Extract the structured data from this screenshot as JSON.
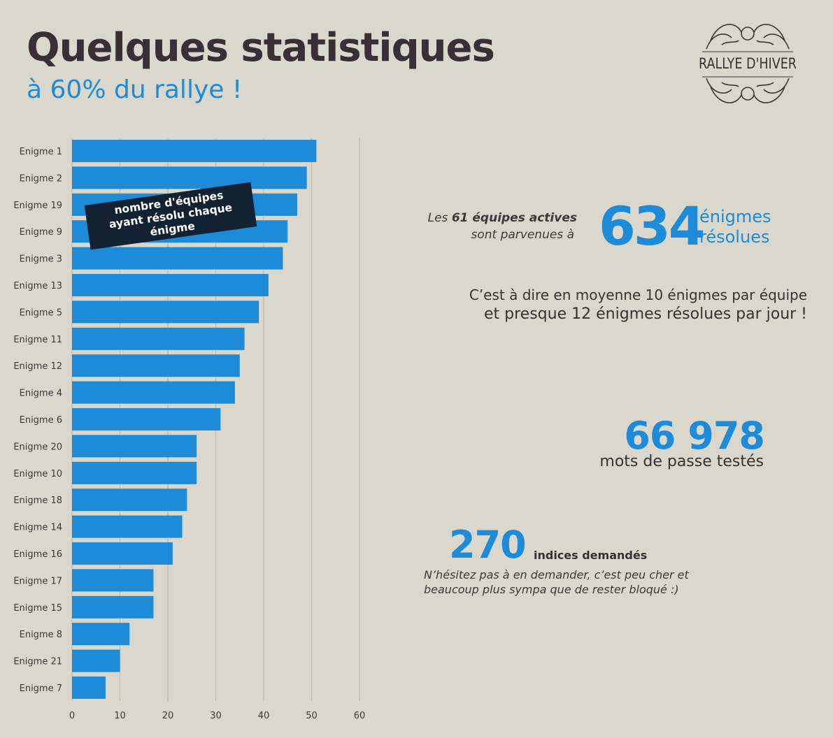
{
  "header": {
    "title": "Quelques statistiques",
    "subtitle": "à 60% du rallye !"
  },
  "logo": {
    "text": "RALLYE D'HIVER"
  },
  "chart_data": {
    "type": "bar",
    "orientation": "horizontal",
    "title": "",
    "xlabel": "",
    "ylabel": "",
    "annotation": "nombre d'équipes ayant résolu chaque énigme",
    "categories": [
      "Enigme 1",
      "Enigme 2",
      "Enigme 19",
      "Enigme 9",
      "Enigme 3",
      "Enigme 13",
      "Enigme 5",
      "Enigme 11",
      "Enigme 12",
      "Enigme 4",
      "Enigme 6",
      "Enigme 20",
      "Enigme 10",
      "Enigme 18",
      "Enigme 14",
      "Enigme 16",
      "Enigme 17",
      "Enigme 15",
      "Enigme 8",
      "Enigme 21",
      "Enigme 7"
    ],
    "values": [
      51,
      49,
      47,
      45,
      44,
      41,
      39,
      36,
      35,
      34,
      31,
      26,
      26,
      24,
      23,
      21,
      17,
      17,
      12,
      10,
      7
    ],
    "xlim": [
      0,
      60
    ],
    "xticks": [
      0,
      10,
      20,
      30,
      40,
      50,
      60
    ],
    "grid": true,
    "bar_color": "#1e8bd8"
  },
  "stats": {
    "teams_prefix": "Les ",
    "teams_bold": "61 équipes actives",
    "teams_line2": "sont parvenues à",
    "solved_number": "634",
    "solved_unit_1": "énigmes",
    "solved_unit_2": "résolues",
    "average_1": "C’est à dire en moyenne 10 énigmes par équipe",
    "average_2": "et presque 12 énigmes résolues par jour !",
    "passwords_number": "66 978",
    "passwords_label": "mots de passe testés",
    "hints_number": "270",
    "hints_label": "indices demandés",
    "hints_note": "N’hésitez pas à en demander, c’est peu cher et beaucoup plus sympa que de rester bloqué :)"
  },
  "colors": {
    "accent": "#1e8bd8",
    "background": "#dad7cc",
    "title": "#3a2e37",
    "annotation_bg": "#132233"
  }
}
